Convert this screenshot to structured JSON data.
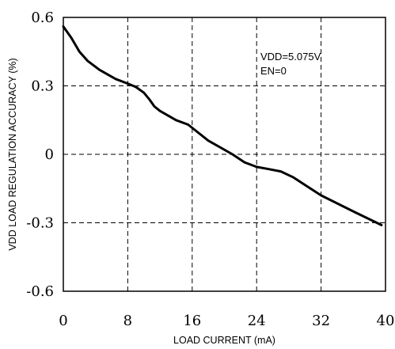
{
  "chart_data": {
    "type": "line",
    "title": "",
    "xlabel": "LOAD CURRENT (mA)",
    "ylabel": "VDD LOAD REGULATION ACCURACY (%)",
    "xlim": [
      0,
      40
    ],
    "ylim": [
      -0.6,
      0.6
    ],
    "xticks": [
      "0",
      "8",
      "16",
      "24",
      "32",
      "40"
    ],
    "yticks": [
      "0.6",
      "0.3",
      "0",
      "-0.3",
      "-0.6"
    ],
    "grid": "dashed",
    "annotations": [
      "VDD=5.075V",
      "EN=0"
    ],
    "series": [
      {
        "x": [
          0,
          1,
          2,
          3,
          4.5,
          6.5,
          8,
          9,
          10,
          10.7,
          11.3,
          12,
          14,
          15.5,
          18,
          21,
          22.5,
          24,
          25.5,
          27,
          28.5,
          32,
          36,
          39.5
        ],
        "y": [
          0.56,
          0.51,
          0.45,
          0.41,
          0.37,
          0.33,
          0.31,
          0.295,
          0.27,
          0.24,
          0.21,
          0.19,
          0.15,
          0.13,
          0.06,
          0.0,
          -0.035,
          -0.055,
          -0.065,
          -0.075,
          -0.1,
          -0.18,
          -0.25,
          -0.31
        ]
      }
    ]
  }
}
